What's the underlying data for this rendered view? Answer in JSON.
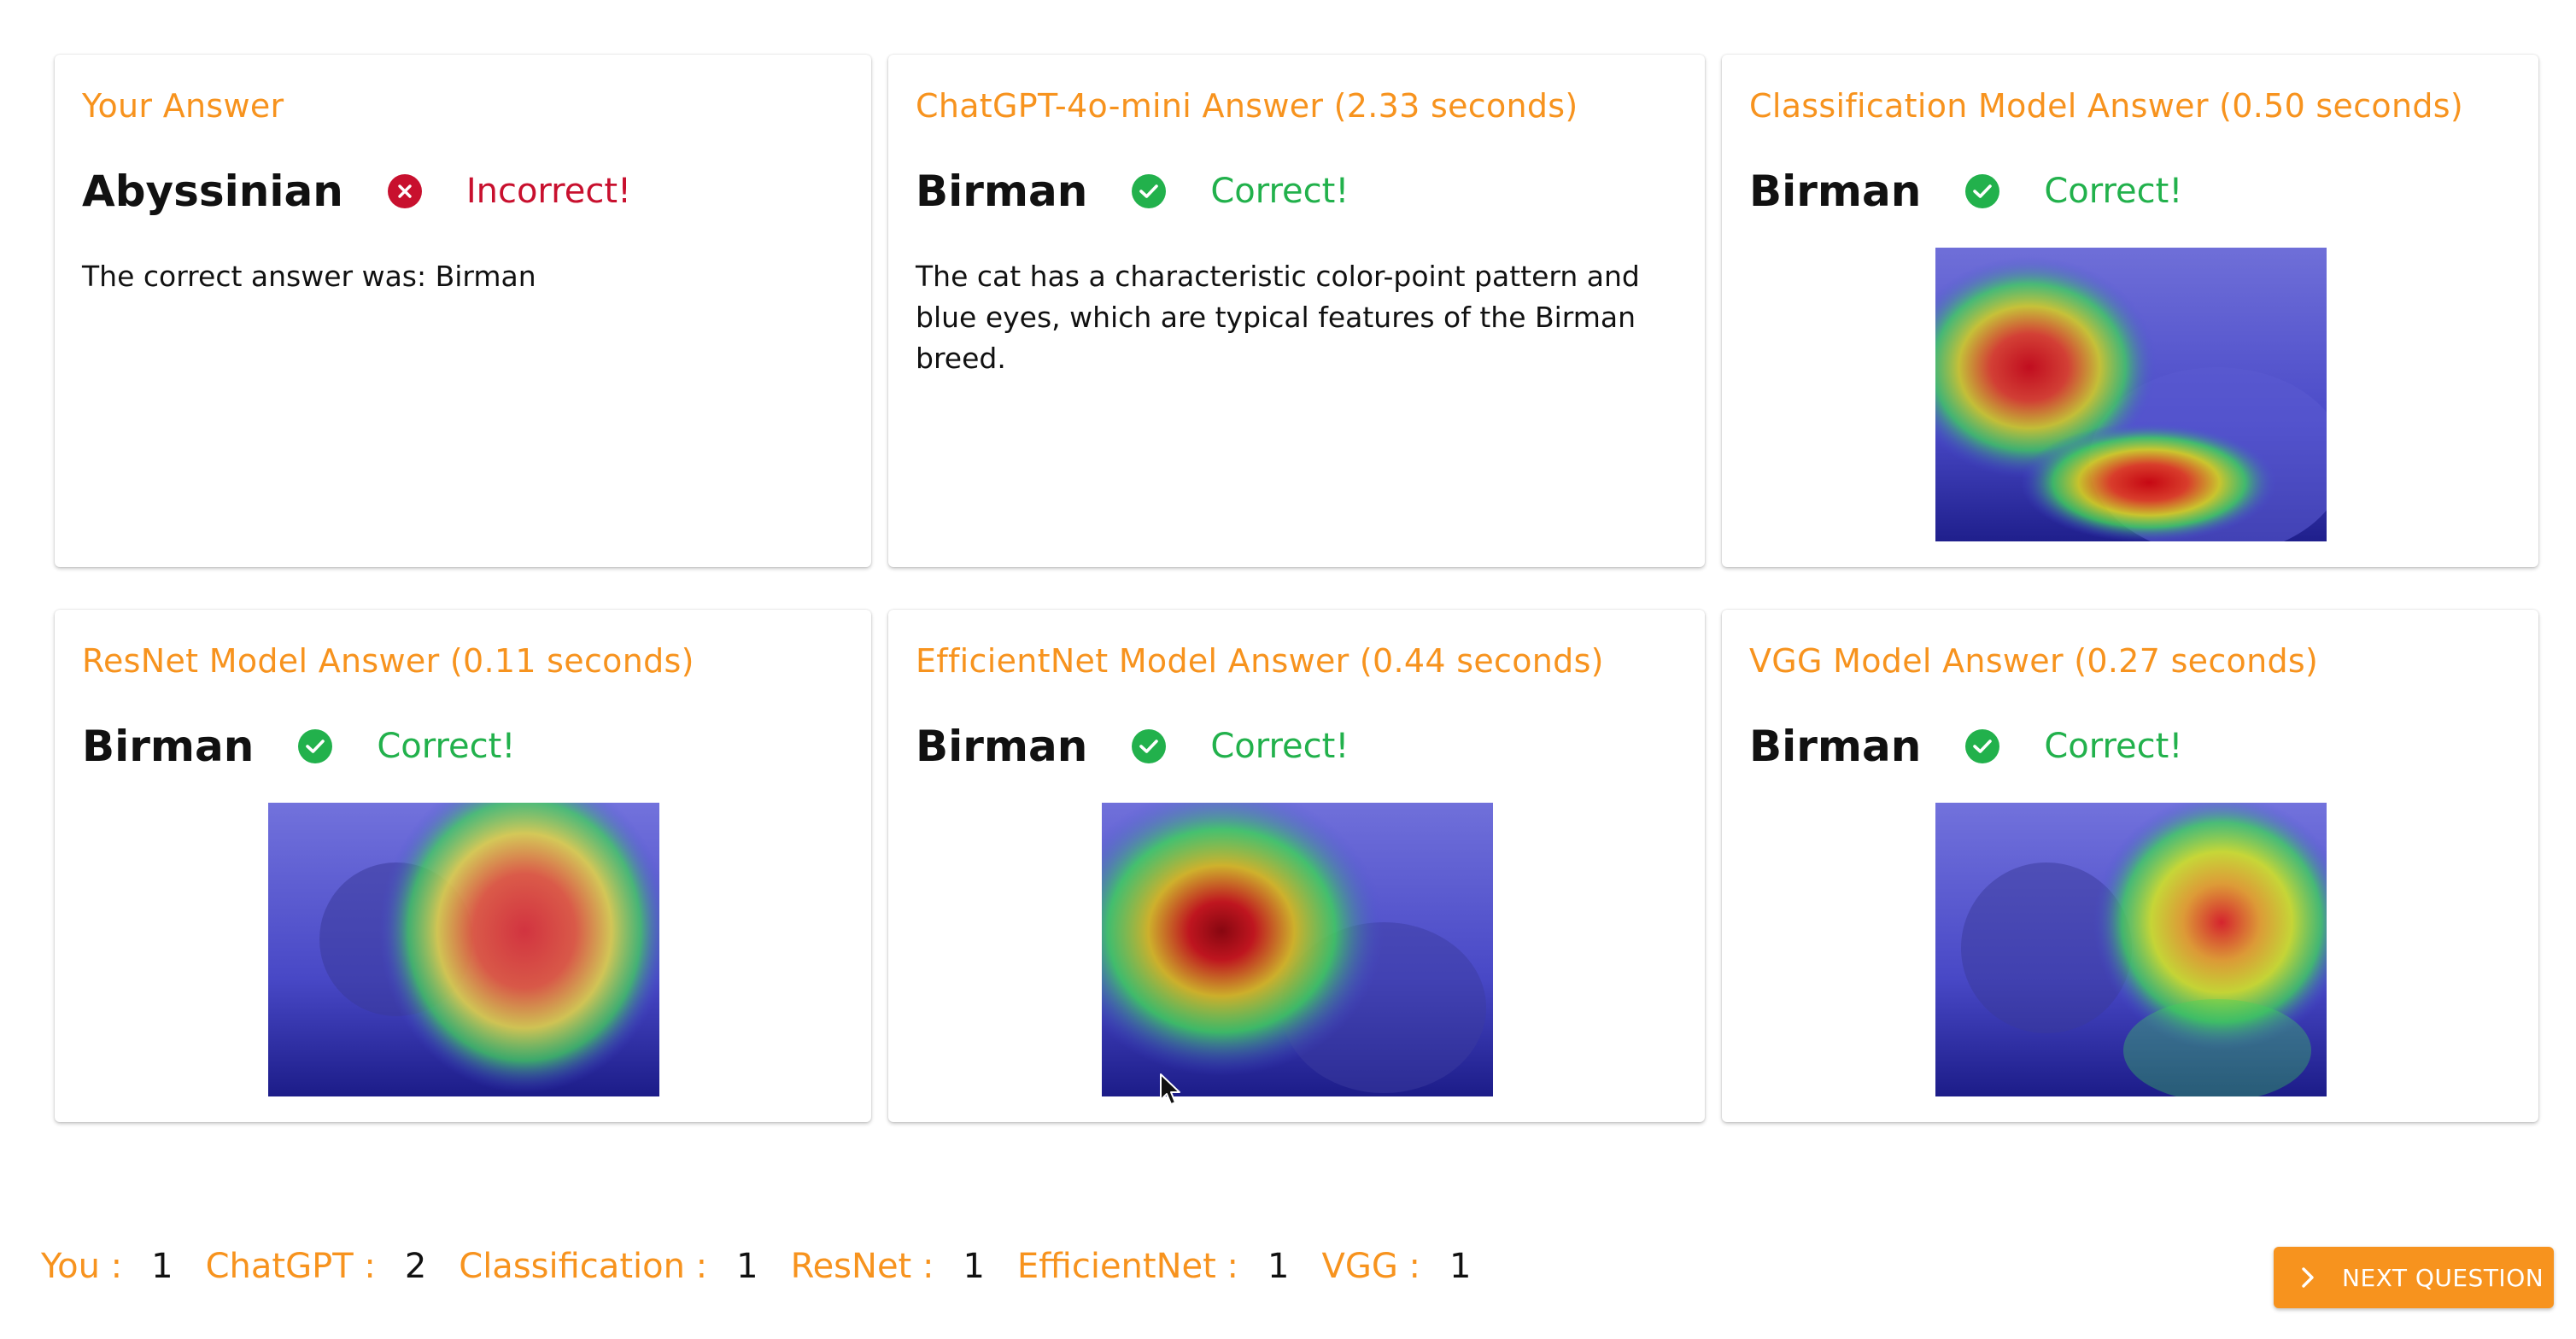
{
  "colors": {
    "accent": "#f7931e",
    "correct": "#22b14c",
    "incorrect": "#c8102e"
  },
  "cards": [
    {
      "title": "Your Answer",
      "answer": "Abyssinian",
      "status": "Incorrect!",
      "correct": false,
      "note": "The correct answer was: Birman"
    },
    {
      "title": "ChatGPT-4o-mini Answer (2.33 seconds)",
      "answer": "Birman",
      "status": "Correct!",
      "correct": true,
      "note": "The cat has a characteristic color-point pattern and blue eyes, which are typical features of the Birman breed."
    },
    {
      "title": "Classification Model Answer (0.50 seconds)",
      "answer": "Birman",
      "status": "Correct!",
      "correct": true,
      "image": "heatmap-cat-image"
    },
    {
      "title": "ResNet Model Answer (0.11 seconds)",
      "answer": "Birman",
      "status": "Correct!",
      "correct": true,
      "image": "heatmap-cat-image"
    },
    {
      "title": "EfficientNet Model Answer (0.44 seconds)",
      "answer": "Birman",
      "status": "Correct!",
      "correct": true,
      "image": "heatmap-cat-image"
    },
    {
      "title": "VGG Model Answer (0.27 seconds)",
      "answer": "Birman",
      "status": "Correct!",
      "correct": true,
      "image": "heatmap-cat-image"
    }
  ],
  "scores": [
    {
      "label": "You :",
      "value": "1"
    },
    {
      "label": "ChatGPT :",
      "value": "2"
    },
    {
      "label": "Classification :",
      "value": "1"
    },
    {
      "label": "ResNet :",
      "value": "1"
    },
    {
      "label": "EfficientNet :",
      "value": "1"
    },
    {
      "label": "VGG :",
      "value": "1"
    }
  ],
  "next_button": {
    "label": "NEXT QUESTION",
    "icon": "chevron-right-icon"
  }
}
